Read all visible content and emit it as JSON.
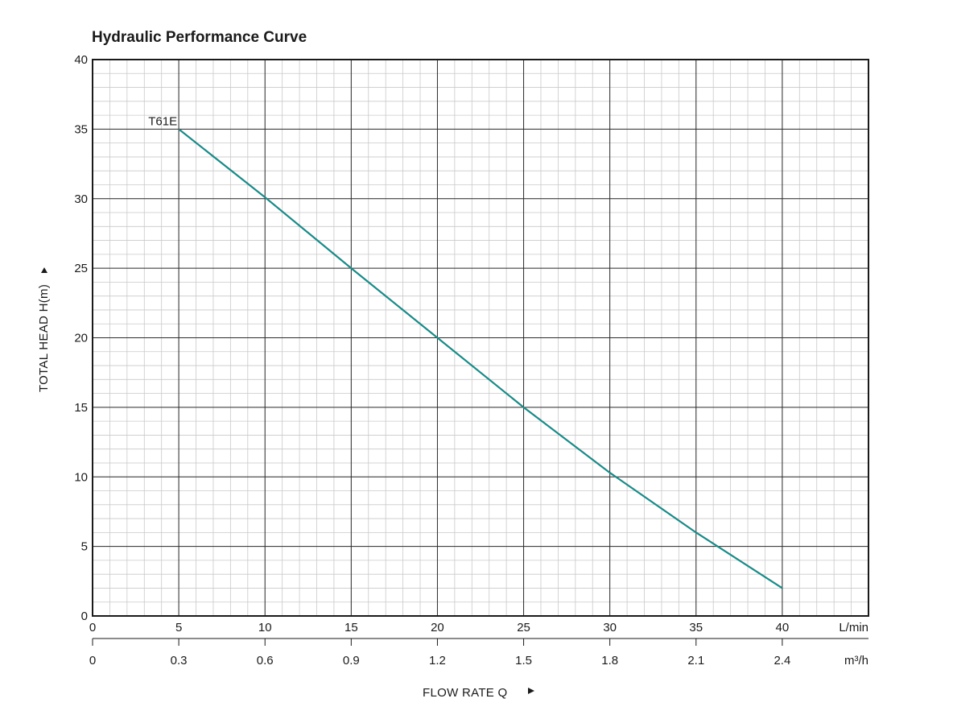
{
  "chart_data": {
    "type": "line",
    "title": "Hydraulic Performance Curve",
    "ylabel": "TOTAL HEAD H(m)",
    "xlabel": "FLOW RATE Q",
    "ylim": [
      0,
      40
    ],
    "xlim": [
      0,
      45
    ],
    "y_ticks": [
      "0",
      "5",
      "10",
      "15",
      "20",
      "25",
      "30",
      "35",
      "40"
    ],
    "x_ticks": [
      "0",
      "5",
      "10",
      "15",
      "20",
      "25",
      "30",
      "35",
      "40"
    ],
    "x_unit": "L/min",
    "x2_ticks": [
      "0",
      "0.3",
      "0.6",
      "0.9",
      "1.2",
      "1.5",
      "1.8",
      "2.1",
      "2.4"
    ],
    "x2_unit": "m³/h",
    "grid": true,
    "series": [
      {
        "name": "T61E",
        "x": [
          5,
          10,
          15,
          20,
          25,
          30,
          35,
          40
        ],
        "y": [
          35,
          30.1,
          25,
          20,
          15,
          10.3,
          6,
          2
        ]
      }
    ],
    "colors": {
      "series": "#1b8a87",
      "major_grid": "#2b2b2b",
      "minor_grid": "#c9c9c9",
      "text": "#1a1a1a"
    }
  }
}
